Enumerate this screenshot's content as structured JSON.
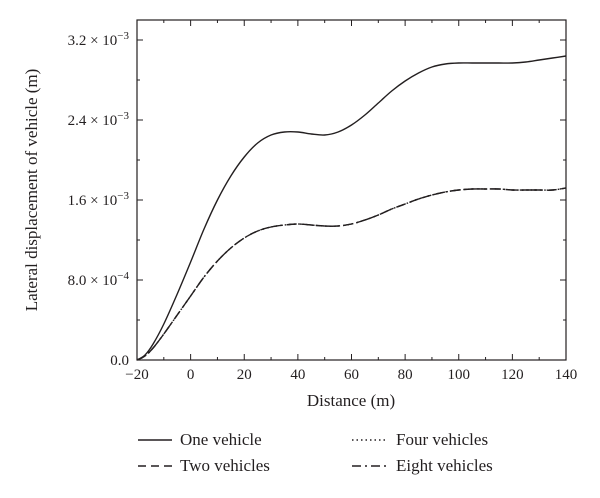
{
  "chart_data": {
    "type": "line",
    "title": "",
    "xlabel": "Distance (m)",
    "ylabel": "Lateral displacement of vehicle (m)",
    "xlim": [
      -20,
      140
    ],
    "ylim": [
      0,
      0.0034
    ],
    "x_ticks": [
      -20,
      0,
      20,
      40,
      60,
      80,
      100,
      120,
      140
    ],
    "x_tick_labels": [
      "−20",
      "0",
      "20",
      "40",
      "60",
      "80",
      "100",
      "120",
      "140"
    ],
    "y_ticks": [
      0,
      0.0008,
      0.0016,
      0.0024,
      0.0032
    ],
    "y_tick_labels": [
      {
        "mantissa": "0.0",
        "exp": ""
      },
      {
        "mantissa": "8.0 × 10",
        "exp": "−4"
      },
      {
        "mantissa": "1.6 × 10",
        "exp": "−3"
      },
      {
        "mantissa": "2.4 × 10",
        "exp": "−3"
      },
      {
        "mantissa": "3.2 × 10",
        "exp": "−3"
      }
    ],
    "grid": false,
    "legend_position": "bottom",
    "series": [
      {
        "name": "One vehicle",
        "dash": "solid",
        "color": "#231f20",
        "x": [
          -20,
          -17,
          -14,
          -10,
          -5,
          0,
          5,
          10,
          15,
          20,
          25,
          30,
          35,
          40,
          45,
          50,
          55,
          60,
          65,
          70,
          75,
          80,
          85,
          90,
          95,
          100,
          105,
          110,
          115,
          120,
          125,
          130,
          135,
          140
        ],
        "y": [
          0,
          5e-05,
          0.00016,
          0.00036,
          0.00066,
          0.00098,
          0.00131,
          0.0016,
          0.00184,
          0.00203,
          0.00217,
          0.00225,
          0.00228,
          0.00228,
          0.00226,
          0.00225,
          0.00228,
          0.00235,
          0.00245,
          0.00257,
          0.00269,
          0.00279,
          0.00287,
          0.00293,
          0.00296,
          0.00297,
          0.00297,
          0.00297,
          0.00297,
          0.00297,
          0.00298,
          0.003,
          0.00302,
          0.00304
        ]
      },
      {
        "name": "Two vehicles",
        "dash": "dashed",
        "color": "#231f20",
        "x": [
          -20,
          -17,
          -14,
          -10,
          -5,
          0,
          5,
          10,
          15,
          20,
          25,
          30,
          35,
          40,
          45,
          50,
          55,
          60,
          65,
          70,
          75,
          80,
          85,
          90,
          95,
          100,
          105,
          110,
          115,
          120,
          125,
          130,
          135,
          140
        ],
        "y": [
          0,
          4e-05,
          0.00012,
          0.00026,
          0.00045,
          0.00064,
          0.00083,
          0.00099,
          0.00112,
          0.00122,
          0.00129,
          0.00133,
          0.00135,
          0.00136,
          0.00135,
          0.00134,
          0.00134,
          0.00136,
          0.0014,
          0.00145,
          0.00151,
          0.00156,
          0.00161,
          0.00165,
          0.00168,
          0.0017,
          0.00171,
          0.00171,
          0.00171,
          0.0017,
          0.0017,
          0.0017,
          0.0017,
          0.00172
        ]
      },
      {
        "name": "Four vehicles",
        "dash": "dotted",
        "color": "#231f20",
        "x": [
          -20,
          -17,
          -14,
          -10,
          -5,
          0,
          5,
          10,
          15,
          20,
          25,
          30,
          35,
          40,
          45,
          50,
          55,
          60,
          65,
          70,
          75,
          80,
          85,
          90,
          95,
          100,
          105,
          110,
          115,
          120,
          125,
          130,
          135,
          140
        ],
        "y": [
          0,
          4e-05,
          0.00012,
          0.00026,
          0.00045,
          0.00064,
          0.00083,
          0.00099,
          0.00112,
          0.00122,
          0.00129,
          0.00133,
          0.00135,
          0.00136,
          0.00135,
          0.00134,
          0.00134,
          0.00136,
          0.0014,
          0.00145,
          0.00151,
          0.00156,
          0.00161,
          0.00165,
          0.00168,
          0.0017,
          0.00171,
          0.00171,
          0.00171,
          0.0017,
          0.0017,
          0.0017,
          0.0017,
          0.00172
        ]
      },
      {
        "name": "Eight vehicles",
        "dash": "dash-dot",
        "color": "#231f20",
        "x": [
          -20,
          -17,
          -14,
          -10,
          -5,
          0,
          5,
          10,
          15,
          20,
          25,
          30,
          35,
          40,
          45,
          50,
          55,
          60,
          65,
          70,
          75,
          80,
          85,
          90,
          95,
          100,
          105,
          110,
          115,
          120,
          125,
          130,
          135,
          140
        ],
        "y": [
          0,
          4e-05,
          0.00012,
          0.00026,
          0.00045,
          0.00064,
          0.00083,
          0.00099,
          0.00112,
          0.00122,
          0.00129,
          0.00133,
          0.00135,
          0.00136,
          0.00135,
          0.00134,
          0.00134,
          0.00136,
          0.0014,
          0.00145,
          0.00151,
          0.00156,
          0.00161,
          0.00165,
          0.00168,
          0.0017,
          0.00171,
          0.00171,
          0.00171,
          0.0017,
          0.0017,
          0.0017,
          0.0017,
          0.00172
        ]
      }
    ]
  }
}
